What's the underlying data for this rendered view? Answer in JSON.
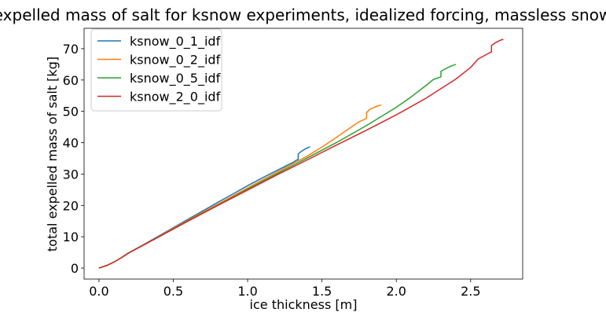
{
  "chart_data": {
    "type": "line",
    "title": "expelled mass of salt for ksnow experiments, idealized forcing, massless snow",
    "xlabel": "ice thickness [m]",
    "ylabel": "total expelled mass of salt [kg]",
    "xlim": [
      -0.1,
      2.85
    ],
    "ylim": [
      -3.5,
      76.5
    ],
    "xticks": [
      0.0,
      0.5,
      1.0,
      1.5,
      2.0,
      2.5
    ],
    "xtick_labels": [
      "0.0",
      "0.5",
      "1.0",
      "1.5",
      "2.0",
      "2.5"
    ],
    "yticks": [
      0,
      10,
      20,
      30,
      40,
      50,
      60,
      70
    ],
    "ytick_labels": [
      "0",
      "10",
      "20",
      "30",
      "40",
      "50",
      "60",
      "70"
    ],
    "grid": false,
    "legend_position": "top-left",
    "series": [
      {
        "name": "ksnow_0_1_idf",
        "color": "#1f77b4",
        "x": [
          0.0,
          0.05,
          0.1,
          0.15,
          0.2,
          0.3,
          0.4,
          0.5,
          0.6,
          0.7,
          0.8,
          0.9,
          1.0,
          1.1,
          1.2,
          1.3,
          1.33,
          1.34,
          1.34,
          1.36,
          1.38,
          1.4,
          1.42
        ],
        "y": [
          0.0,
          0.8,
          1.9,
          3.3,
          4.9,
          7.5,
          10.2,
          12.9,
          15.6,
          18.3,
          21.0,
          23.6,
          26.3,
          28.8,
          31.2,
          33.6,
          34.5,
          34.6,
          36.4,
          37.2,
          37.8,
          38.3,
          38.7
        ]
      },
      {
        "name": "ksnow_0_2_idf",
        "color": "#ff7f0e",
        "x": [
          0.0,
          0.05,
          0.1,
          0.15,
          0.2,
          0.4,
          0.6,
          0.8,
          1.0,
          1.2,
          1.4,
          1.5,
          1.6,
          1.7,
          1.75,
          1.79,
          1.8,
          1.8,
          1.82,
          1.85,
          1.88,
          1.9
        ],
        "y": [
          0.0,
          0.8,
          1.9,
          3.3,
          4.8,
          10.0,
          15.3,
          20.4,
          25.6,
          30.7,
          35.7,
          38.6,
          41.8,
          45.1,
          46.7,
          47.5,
          47.8,
          49.6,
          50.6,
          51.3,
          51.8,
          52.0
        ]
      },
      {
        "name": "ksnow_0_5_idf",
        "color": "#2ca02c",
        "x": [
          0.0,
          0.05,
          0.1,
          0.15,
          0.2,
          0.4,
          0.6,
          0.8,
          1.0,
          1.2,
          1.4,
          1.6,
          1.8,
          2.0,
          2.1,
          2.2,
          2.25,
          2.3,
          2.3,
          2.34,
          2.37,
          2.4
        ],
        "y": [
          0.0,
          0.8,
          1.9,
          3.3,
          4.8,
          9.9,
          15.1,
          20.1,
          25.2,
          30.2,
          35.1,
          40.1,
          45.5,
          51.3,
          54.6,
          58.3,
          60.2,
          61.0,
          62.8,
          63.8,
          64.5,
          65.0
        ]
      },
      {
        "name": "ksnow_2_0_idf",
        "color": "#d62728",
        "x": [
          0.0,
          0.05,
          0.1,
          0.15,
          0.2,
          0.4,
          0.6,
          0.8,
          1.0,
          1.2,
          1.4,
          1.6,
          1.8,
          2.0,
          2.2,
          2.4,
          2.5,
          2.55,
          2.62,
          2.64,
          2.64,
          2.67,
          2.7,
          2.72
        ],
        "y": [
          0.0,
          0.8,
          1.9,
          3.3,
          4.8,
          9.9,
          15.0,
          20.0,
          24.9,
          29.8,
          34.5,
          39.3,
          44.0,
          48.9,
          54.2,
          60.3,
          64.0,
          66.7,
          68.5,
          69.0,
          71.0,
          72.0,
          72.7,
          73.0
        ]
      }
    ]
  }
}
